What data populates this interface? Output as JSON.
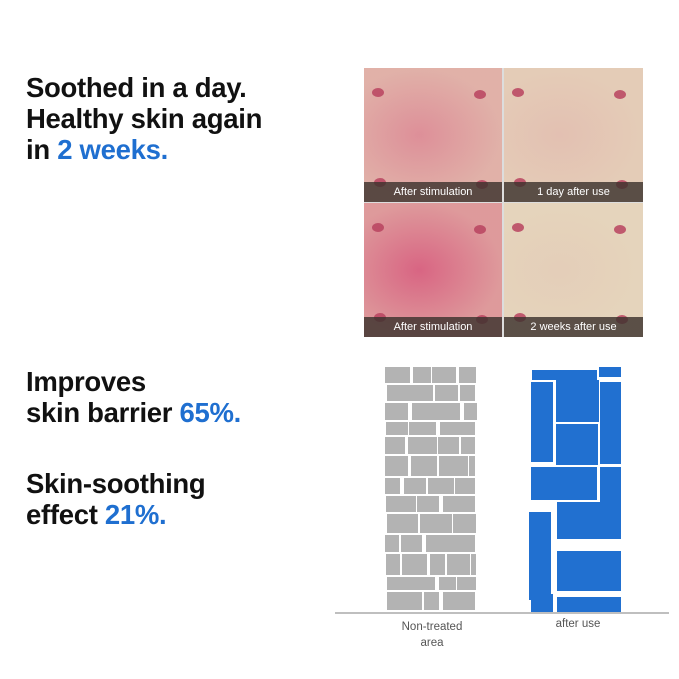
{
  "headline": {
    "line1": "Soothed in a day.",
    "line2": "Healthy skin again",
    "line3_prefix": "in ",
    "line3_highlight": "2 weeks."
  },
  "barrier": {
    "line1": "Improves",
    "line2_prefix": "skin barrier ",
    "line2_highlight": "65%."
  },
  "soothing": {
    "line1": "Skin-soothing",
    "line2_prefix": "effect ",
    "line2_highlight": "21%."
  },
  "photos": [
    {
      "caption": "After stimulation",
      "redness": 0.55
    },
    {
      "caption": "1 day after use",
      "redness": 0.2
    },
    {
      "caption": "After stimulation",
      "redness": 0.85
    },
    {
      "caption": "2 weeks after use",
      "redness": 0.1
    }
  ],
  "comparison": {
    "left_label_line1": "Non-treated",
    "left_label_line2": "area",
    "right_label": "after use",
    "left_color": "#b3b3b3",
    "right_color": "#2170d0"
  },
  "colors": {
    "accent": "#1f6fd0"
  }
}
